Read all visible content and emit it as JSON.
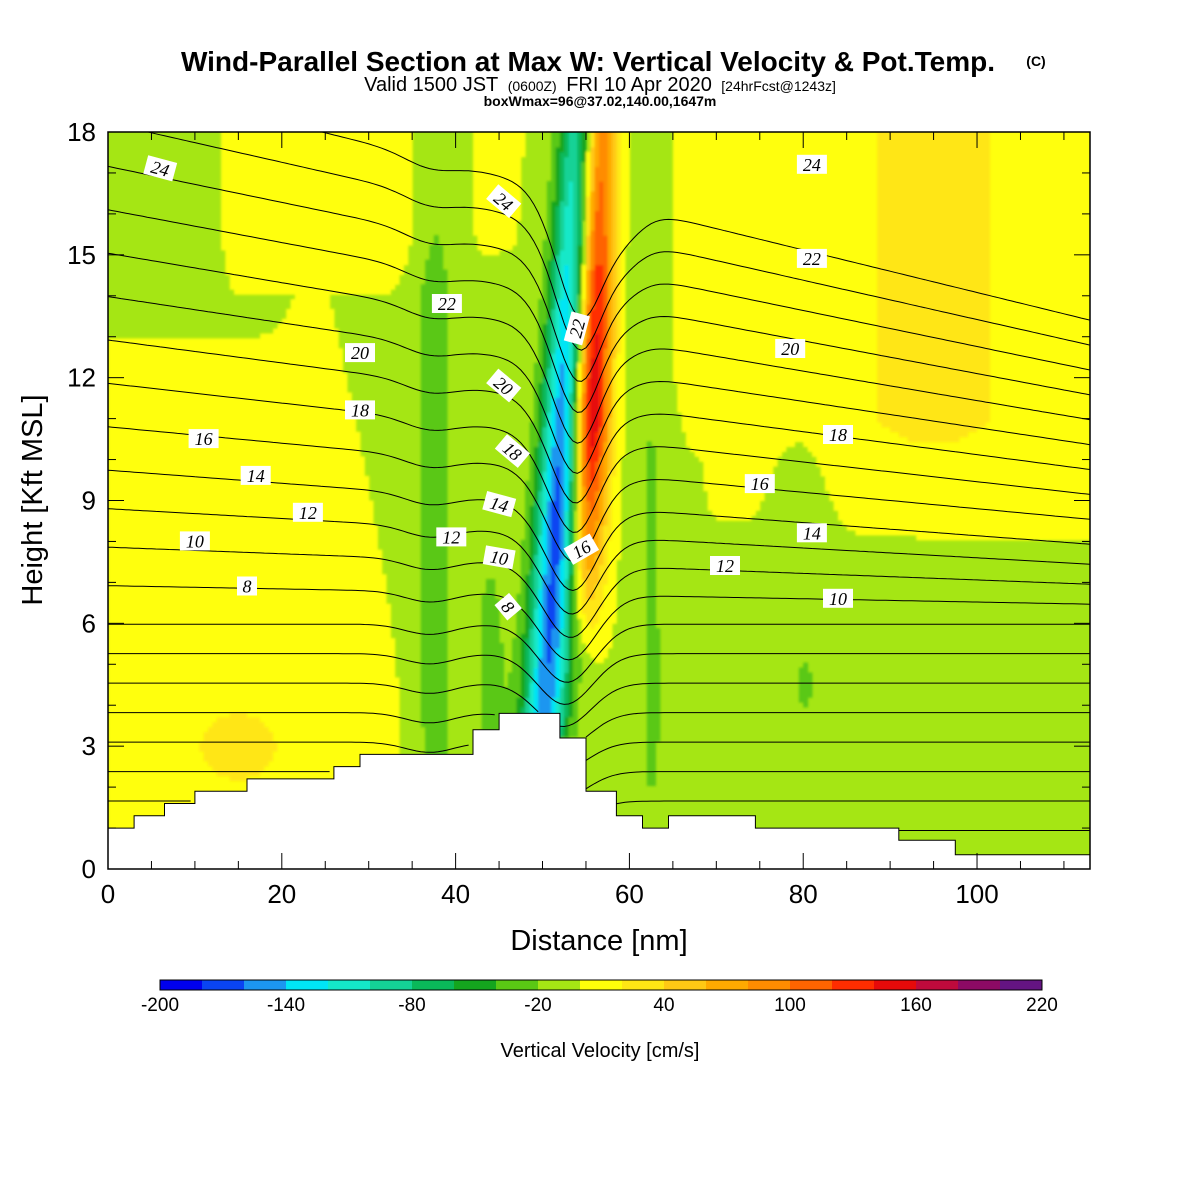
{
  "title": {
    "main": "Wind-Parallel Section at Max W: Vertical Velocity & Pot.Temp.",
    "copyright": "(C)",
    "valid_prefix": "Valid 1500 JST",
    "valid_zulu": "(0600Z)",
    "valid_date": "FRI 10 Apr 2020",
    "forecast": "[24hrFcst@1243z]",
    "boxwmax": "boxWmax=96@37.02,140.00,1647m"
  },
  "chart_data": {
    "type": "heatmap",
    "description_fields": "filled contours of vertical velocity with overlaid potential temperature contour lines and terrain",
    "xlabel": "Distance [nm]",
    "ylabel": "Height [Kft MSL]",
    "xlim": [
      0,
      113
    ],
    "ylim": [
      0,
      18
    ],
    "x_ticks": [
      0,
      20,
      40,
      60,
      80,
      100
    ],
    "y_ticks": [
      0,
      3,
      6,
      9,
      12,
      15,
      18
    ],
    "colorbar": {
      "title": "Vertical Velocity [cm/s]",
      "levels": [
        -200,
        -180,
        -160,
        -140,
        -120,
        -100,
        -80,
        -60,
        -40,
        -20,
        0,
        20,
        40,
        60,
        80,
        100,
        120,
        140,
        160,
        180,
        200,
        220
      ],
      "tick_labels": [
        -200,
        -140,
        -80,
        -20,
        40,
        100,
        160,
        220
      ],
      "colors": [
        "#0000ee",
        "#0a44f2",
        "#1c96f0",
        "#00e5f5",
        "#14e8c8",
        "#14d296",
        "#0ab85a",
        "#14a51e",
        "#5ac814",
        "#a5e614",
        "#ffff0a",
        "#ffe614",
        "#ffc814",
        "#ffaa00",
        "#ff8c00",
        "#ff6400",
        "#ff2d00",
        "#e60a0a",
        "#be0a3c",
        "#8c0a64",
        "#641482"
      ]
    },
    "background_velocity": 0,
    "velocity_features": [
      {
        "x": 51,
        "y": 9,
        "value": -180,
        "note": "downdraft core"
      },
      {
        "x": 53.5,
        "y": 15,
        "value": -140
      },
      {
        "x": 55,
        "y": 15,
        "value": 180,
        "note": "updraft core"
      },
      {
        "x": 56,
        "y": 10,
        "value": 120
      },
      {
        "x": 44,
        "y": 5,
        "value": 40
      },
      {
        "x": 37,
        "y": 10,
        "value": -30
      },
      {
        "x": 63,
        "y": 9,
        "value": -30
      },
      {
        "x": 80,
        "y": 12,
        "value": -10
      }
    ],
    "terrain_profile": {
      "distance": [
        0,
        3,
        3,
        6.5,
        6.5,
        10,
        10,
        16,
        16,
        26,
        26,
        29,
        29,
        32,
        32,
        35,
        35,
        42,
        42,
        45,
        45,
        48,
        48,
        52,
        52,
        55,
        55,
        58.5,
        58.5,
        61.5,
        61.5,
        64.5,
        64.5,
        74.5,
        74.5,
        91,
        91,
        97.5,
        97.5,
        113
      ],
      "height": [
        1.0,
        1.0,
        1.3,
        1.3,
        1.6,
        1.6,
        1.9,
        1.9,
        2.2,
        2.2,
        2.5,
        2.5,
        2.8,
        2.8,
        2.8,
        2.8,
        2.8,
        2.8,
        3.4,
        3.4,
        3.8,
        3.8,
        3.8,
        3.8,
        3.2,
        3.2,
        1.9,
        1.9,
        1.3,
        1.3,
        1.0,
        1.0,
        1.3,
        1.3,
        1.0,
        1.0,
        0.7,
        0.7,
        0.35,
        0.35
      ]
    },
    "theta_contours": {
      "levels": [
        2,
        3,
        4,
        5,
        6,
        7,
        8,
        9,
        10,
        11,
        12,
        13,
        14,
        15,
        16,
        17,
        18,
        19,
        20,
        21,
        22,
        23,
        24,
        25
      ],
      "labels": [
        {
          "text": "24",
          "x": 6,
          "y": 17.1,
          "angle": 15
        },
        {
          "text": "24",
          "x": 45.5,
          "y": 16.3,
          "angle": 40
        },
        {
          "text": "24",
          "x": 81,
          "y": 17.2,
          "angle": 0
        },
        {
          "text": "22",
          "x": 39,
          "y": 13.8,
          "angle": 0
        },
        {
          "text": "22",
          "x": 54,
          "y": 13.2,
          "angle": -75
        },
        {
          "text": "22",
          "x": 81,
          "y": 14.9,
          "angle": 0
        },
        {
          "text": "20",
          "x": 29,
          "y": 12.6,
          "angle": 0
        },
        {
          "text": "20",
          "x": 45.5,
          "y": 11.8,
          "angle": 40
        },
        {
          "text": "20",
          "x": 78.5,
          "y": 12.7,
          "angle": 0
        },
        {
          "text": "18",
          "x": 29,
          "y": 11.2,
          "angle": 0
        },
        {
          "text": "18",
          "x": 46.5,
          "y": 10.2,
          "angle": 40
        },
        {
          "text": "18",
          "x": 84,
          "y": 10.6,
          "angle": 0
        },
        {
          "text": "16",
          "x": 11,
          "y": 10.5,
          "angle": 0
        },
        {
          "text": "16",
          "x": 54.5,
          "y": 7.8,
          "angle": -30
        },
        {
          "text": "16",
          "x": 75,
          "y": 9.4,
          "angle": 0
        },
        {
          "text": "14",
          "x": 17,
          "y": 9.6,
          "angle": 0
        },
        {
          "text": "14",
          "x": 45,
          "y": 8.9,
          "angle": 15
        },
        {
          "text": "14",
          "x": 81,
          "y": 8.2,
          "angle": 0
        },
        {
          "text": "12",
          "x": 23,
          "y": 8.7,
          "angle": 0
        },
        {
          "text": "12",
          "x": 39.5,
          "y": 8.1,
          "angle": 0
        },
        {
          "text": "12",
          "x": 71,
          "y": 7.4,
          "angle": 0
        },
        {
          "text": "10",
          "x": 10,
          "y": 8.0,
          "angle": 0
        },
        {
          "text": "10",
          "x": 45,
          "y": 7.6,
          "angle": 10
        },
        {
          "text": "10",
          "x": 84,
          "y": 6.6,
          "angle": 0
        },
        {
          "text": "8",
          "x": 16,
          "y": 6.9,
          "angle": 0
        },
        {
          "text": "8",
          "x": 46,
          "y": 6.4,
          "angle": 50
        }
      ]
    }
  }
}
